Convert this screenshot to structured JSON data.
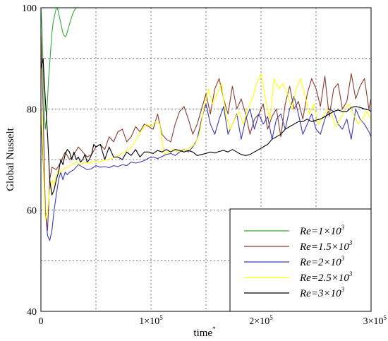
{
  "chart_data": {
    "type": "line",
    "xlabel": "time",
    "xlabel_superscript": "*",
    "ylabel": "Global Nusselt",
    "xlim": [
      0,
      300000
    ],
    "ylim": [
      40,
      100
    ],
    "grid": true,
    "grid_style": "dotted",
    "legend_position": "bottom-right",
    "x_ticks": [
      {
        "value": 0,
        "label": "0"
      },
      {
        "value": 100000,
        "label": "1×10",
        "sup": "5"
      },
      {
        "value": 200000,
        "label": "2×10",
        "sup": "5"
      },
      {
        "value": 300000,
        "label": "3×10",
        "sup": "5"
      }
    ],
    "y_ticks": [
      {
        "value": 40,
        "label": "40"
      },
      {
        "value": 60,
        "label": "60"
      },
      {
        "value": 80,
        "label": "80"
      },
      {
        "value": 100,
        "label": "100"
      }
    ],
    "series": [
      {
        "name": "Re=1×10",
        "sup": "3",
        "color": "#33aa33",
        "x": [
          0,
          1000,
          2000,
          3000,
          4000,
          5000,
          6000,
          7000,
          8000,
          9000,
          10000,
          11000,
          12000,
          13000,
          14000,
          15000,
          16000,
          17000,
          18000,
          19000,
          20000,
          21000,
          22000,
          23000,
          24000,
          25000,
          26000,
          27000,
          28000,
          29000,
          30000,
          31000,
          32000
        ],
        "y": [
          100,
          96,
          88,
          80,
          76,
          78,
          82,
          86,
          89,
          92,
          95,
          97,
          98,
          99,
          100,
          100,
          99,
          98,
          97,
          96,
          95,
          94.5,
          94.3,
          94.5,
          95.2,
          96,
          96.8,
          97.5,
          98.2,
          98.8,
          99.3,
          99.7,
          100
        ]
      },
      {
        "name": "Re=1.5×10",
        "sup": "3",
        "color": "#8b3a2e",
        "x": [
          0,
          2000,
          4000,
          6000,
          8000,
          10000,
          14000,
          18000,
          22000,
          26000,
          30000,
          34000,
          38000,
          42000,
          46000,
          50000,
          54000,
          58000,
          62000,
          66000,
          70000,
          74000,
          78000,
          82000,
          86000,
          90000,
          94000,
          98000,
          102000,
          106000,
          110000,
          114000,
          118000,
          122000,
          126000,
          130000,
          134000,
          138000,
          142000,
          146000,
          150000,
          154000,
          158000,
          162000,
          166000,
          170000,
          174000,
          178000,
          182000,
          186000,
          190000,
          194000,
          198000,
          202000,
          206000,
          210000,
          214000,
          218000,
          222000,
          226000,
          230000,
          234000,
          238000,
          242000,
          246000,
          250000,
          254000,
          258000,
          262000,
          266000,
          270000,
          274000,
          278000,
          282000,
          286000,
          290000,
          294000,
          298000,
          300000
        ],
        "y": [
          95,
          80,
          60,
          56,
          66,
          68.5,
          68,
          69.5,
          71.5,
          70,
          71,
          72.5,
          71.5,
          70.5,
          71,
          72.5,
          73,
          72,
          74.5,
          73.5,
          75.5,
          76,
          73.5,
          74.5,
          76.5,
          75.5,
          77,
          76.5,
          76,
          79,
          75,
          74,
          73.5,
          77,
          79.5,
          80.5,
          78,
          75,
          77,
          80,
          83,
          79,
          84,
          86,
          82,
          79,
          84.5,
          80,
          82,
          79,
          75,
          78,
          79,
          81,
          76,
          78.5,
          80,
          74.5,
          81,
          84.5,
          80,
          81.5,
          78,
          83,
          86,
          84,
          80.5,
          86.5,
          78.5,
          84,
          85,
          80,
          81.5,
          87,
          82,
          84.5,
          86,
          80,
          82
        ]
      },
      {
        "name": "Re=2×10",
        "sup": "3",
        "color": "#3a3ab8",
        "x": [
          0,
          2000,
          4000,
          6000,
          8000,
          10000,
          12000,
          14000,
          16000,
          18000,
          20000,
          22000,
          24000,
          26000,
          30000,
          34000,
          38000,
          42000,
          46000,
          50000,
          54000,
          58000,
          62000,
          66000,
          70000,
          74000,
          78000,
          82000,
          86000,
          90000,
          94000,
          98000,
          102000,
          106000,
          110000,
          114000,
          118000,
          122000,
          126000,
          130000,
          134000,
          138000,
          142000,
          146000,
          150000,
          154000,
          158000,
          162000,
          166000,
          170000,
          174000,
          178000,
          182000,
          186000,
          190000,
          194000,
          198000,
          202000,
          206000,
          210000,
          214000,
          218000,
          222000,
          226000,
          230000,
          234000,
          238000,
          242000,
          246000,
          250000,
          254000,
          258000,
          262000,
          266000,
          270000,
          274000,
          278000,
          282000,
          286000,
          290000,
          294000,
          298000,
          300000
        ],
        "y": [
          78,
          70,
          60,
          55,
          54,
          56,
          60,
          63,
          66,
          67.5,
          66,
          67.5,
          67,
          67.5,
          68,
          69,
          68.5,
          68,
          68.2,
          68.8,
          68.5,
          68.6,
          68.4,
          68.8,
          68.6,
          69,
          68.8,
          69.5,
          69.3,
          69.5,
          69.8,
          70.3,
          70.5,
          70.2,
          70.6,
          71,
          71.2,
          70.8,
          71.5,
          72,
          71.5,
          72.5,
          74,
          78,
          81,
          77,
          75,
          78,
          80.5,
          75,
          77,
          79,
          74,
          78,
          80,
          76,
          79,
          77,
          78.5,
          74,
          78,
          79,
          76,
          80,
          82.5,
          79,
          75,
          77,
          79,
          76,
          75,
          78,
          80,
          79.5,
          77,
          76,
          78,
          74,
          80,
          78,
          77,
          75.5,
          74.5
        ]
      },
      {
        "name": "Re=2.5×10",
        "sup": "3",
        "color": "#ffff00",
        "x": [
          0,
          2000,
          4000,
          6000,
          8000,
          10000,
          12000,
          14000,
          16000,
          18000,
          20000,
          24000,
          28000,
          32000,
          36000,
          40000,
          44000,
          48000,
          52000,
          56000,
          60000,
          64000,
          68000,
          72000,
          76000,
          80000,
          84000,
          88000,
          92000,
          96000,
          100000,
          104000,
          108000,
          112000,
          116000,
          120000,
          124000,
          128000,
          132000,
          136000,
          140000,
          144000,
          148000,
          152000,
          156000,
          160000,
          164000,
          168000,
          172000,
          176000,
          180000,
          184000,
          188000,
          192000,
          196000,
          200000,
          204000,
          208000,
          212000,
          216000,
          220000,
          224000,
          228000,
          232000,
          236000,
          240000,
          244000,
          248000,
          252000,
          256000,
          260000,
          264000,
          268000,
          272000,
          276000,
          280000,
          284000,
          288000,
          292000,
          296000,
          300000
        ],
        "y": [
          80,
          72,
          58,
          60,
          64,
          66,
          65,
          67,
          68,
          67.5,
          68,
          68.5,
          69,
          69.5,
          69,
          69.5,
          69.3,
          69.6,
          69.5,
          69.8,
          70,
          70.2,
          70.5,
          71,
          71.5,
          72,
          73,
          74.5,
          76,
          77,
          76.5,
          77.5,
          77,
          71,
          71.5,
          72,
          71.5,
          72,
          71.8,
          72.5,
          73,
          75,
          80,
          84,
          81,
          83,
          85,
          79,
          76,
          78,
          79.5,
          77,
          80,
          82,
          85,
          87,
          82,
          78,
          86,
          84,
          85,
          83,
          80,
          84,
          86,
          82.5,
          79,
          81,
          77,
          78,
          80,
          79,
          76.5,
          78,
          80,
          81,
          79,
          77,
          78,
          79.5,
          78
        ]
      },
      {
        "name": "Re=3×10",
        "sup": "3",
        "color": "#000000",
        "x": [
          0,
          2000,
          4000,
          6000,
          8000,
          10000,
          12000,
          14000,
          16000,
          18000,
          20000,
          22000,
          24000,
          26000,
          28000,
          30000,
          32000,
          34000,
          36000,
          38000,
          40000,
          42000,
          44000,
          46000,
          48000,
          50000,
          54000,
          58000,
          62000,
          66000,
          70000,
          74000,
          78000,
          82000,
          86000,
          90000,
          94000,
          98000,
          102000,
          106000,
          110000,
          114000,
          118000,
          122000,
          126000,
          130000,
          134000,
          138000,
          142000,
          146000,
          150000,
          154000,
          158000,
          162000,
          166000,
          170000,
          174000,
          178000,
          182000,
          186000,
          190000,
          194000,
          198000,
          202000,
          206000,
          210000,
          214000,
          218000,
          222000,
          226000,
          230000,
          234000,
          238000,
          242000,
          246000,
          250000,
          254000,
          258000,
          262000,
          266000,
          270000,
          274000,
          278000,
          282000,
          286000,
          290000,
          294000,
          298000,
          300000
        ],
        "y": [
          88,
          90,
          82,
          75,
          66,
          63,
          64,
          66,
          67.5,
          70,
          69,
          71,
          72,
          71.5,
          70,
          71.5,
          70,
          70.5,
          69.5,
          70,
          71,
          69.5,
          70,
          71,
          73,
          72.5,
          73,
          70,
          72.5,
          70.5,
          70.5,
          70,
          71.5,
          70.8,
          72,
          70.5,
          71.5,
          71.5,
          71.2,
          71.8,
          71.5,
          72,
          71.5,
          72,
          71.8,
          71.5,
          71.8,
          71.5,
          70.8,
          71,
          71.2,
          71.5,
          71.3,
          71.6,
          71.8,
          71.5,
          72,
          71.5,
          71,
          70.8,
          71,
          71.5,
          72,
          72.5,
          73,
          74,
          74.5,
          75,
          76,
          76.5,
          77,
          77.5,
          77.5,
          78,
          77.5,
          77.8,
          78,
          78.5,
          79,
          79.5,
          79.8,
          79.5,
          79.5,
          80.3,
          80.5,
          80.3,
          80,
          79.8,
          79.5
        ]
      }
    ]
  }
}
